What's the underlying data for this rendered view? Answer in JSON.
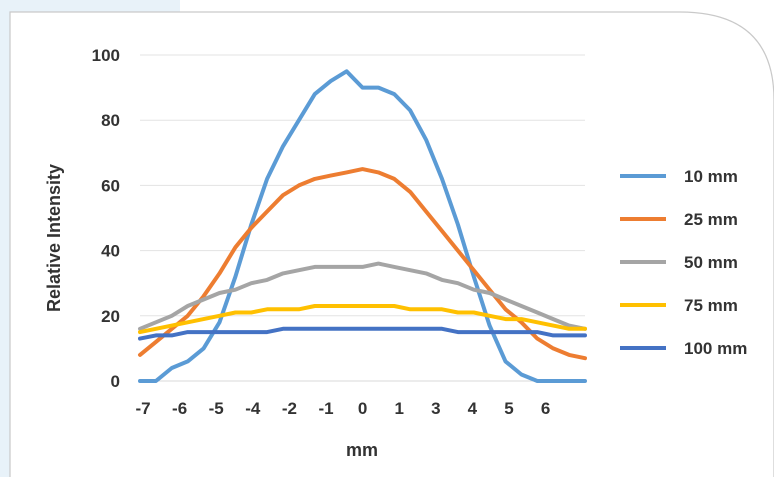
{
  "chart_data": {
    "type": "line",
    "title": "",
    "xlabel": "mm",
    "ylabel": "Relative Intensity",
    "x_tick_labels": [
      "-7",
      "-6",
      "-5",
      "-4",
      "-2",
      "-1",
      "0",
      "1",
      "3",
      "4",
      "5",
      "6"
    ],
    "y_ticks": [
      0,
      20,
      40,
      60,
      80,
      100
    ],
    "ylim": [
      0,
      100
    ],
    "grid": "horizontal",
    "legend_position": "right",
    "x": [
      -7,
      -6.5,
      -6,
      -5.5,
      -5,
      -4.5,
      -4,
      -3.5,
      -3,
      -2.5,
      -2,
      -1.5,
      -1,
      -0.5,
      0,
      0.5,
      1,
      1.5,
      2,
      2.5,
      3,
      3.5,
      4,
      4.5,
      5,
      5.5,
      6,
      6.5,
      7
    ],
    "series": [
      {
        "name": "10 mm",
        "color": "#5b9bd5",
        "values": [
          0,
          0,
          4,
          6,
          10,
          18,
          32,
          48,
          62,
          72,
          80,
          88,
          92,
          95,
          90,
          90,
          88,
          83,
          74,
          62,
          48,
          32,
          17,
          6,
          2,
          0,
          0,
          0,
          0
        ]
      },
      {
        "name": "25 mm",
        "color": "#ed7d31",
        "values": [
          8,
          12,
          16,
          20,
          26,
          33,
          41,
          47,
          52,
          57,
          60,
          62,
          63,
          64,
          65,
          64,
          62,
          58,
          52,
          46,
          40,
          34,
          28,
          22,
          18,
          13,
          10,
          8,
          7
        ]
      },
      {
        "name": "50 mm",
        "color": "#a5a5a5",
        "values": [
          16,
          18,
          20,
          23,
          25,
          27,
          28,
          30,
          31,
          33,
          34,
          35,
          35,
          35,
          35,
          36,
          35,
          34,
          33,
          31,
          30,
          28,
          27,
          25,
          23,
          21,
          19,
          17,
          16
        ]
      },
      {
        "name": "75 mm",
        "color": "#ffc000",
        "values": [
          15,
          16,
          17,
          18,
          19,
          20,
          21,
          21,
          22,
          22,
          22,
          23,
          23,
          23,
          23,
          23,
          23,
          22,
          22,
          22,
          21,
          21,
          20,
          19,
          19,
          18,
          17,
          16,
          16
        ]
      },
      {
        "name": "100 mm",
        "color": "#4472c4",
        "values": [
          13,
          14,
          14,
          15,
          15,
          15,
          15,
          15,
          15,
          16,
          16,
          16,
          16,
          16,
          16,
          16,
          16,
          16,
          16,
          16,
          15,
          15,
          15,
          15,
          15,
          15,
          14,
          14,
          14
        ]
      }
    ]
  }
}
